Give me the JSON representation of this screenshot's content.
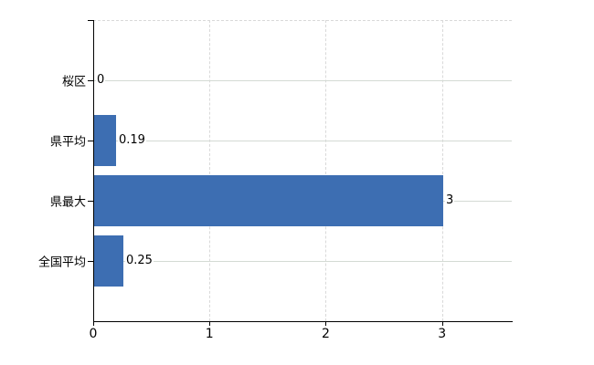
{
  "chart_data": {
    "type": "bar",
    "orientation": "horizontal",
    "categories": [
      "桜区",
      "県平均",
      "県最大",
      "全国平均"
    ],
    "values": [
      0,
      0.19,
      3,
      0.25
    ],
    "data_labels": [
      "0",
      "0.19",
      "3",
      "0.25"
    ],
    "x_ticks": [
      0,
      1,
      2,
      3
    ],
    "x_tick_labels": [
      "0",
      "1",
      "2",
      "3"
    ],
    "xlim": [
      0,
      3.6
    ],
    "title": "",
    "xlabel": "",
    "ylabel": "",
    "legend": null,
    "grid": {
      "horizontal_solid_at_category_centers": true,
      "vertical_dashed_at_x_ticks": true,
      "top_border_dashed": true
    },
    "colors": {
      "bar": "#3d6eb2",
      "grid_horizontal": "#d4dad4",
      "grid_vertical_dashed": "#d9d9d9",
      "axis": "#000000",
      "text": "#000000",
      "background": "#ffffff"
    }
  }
}
